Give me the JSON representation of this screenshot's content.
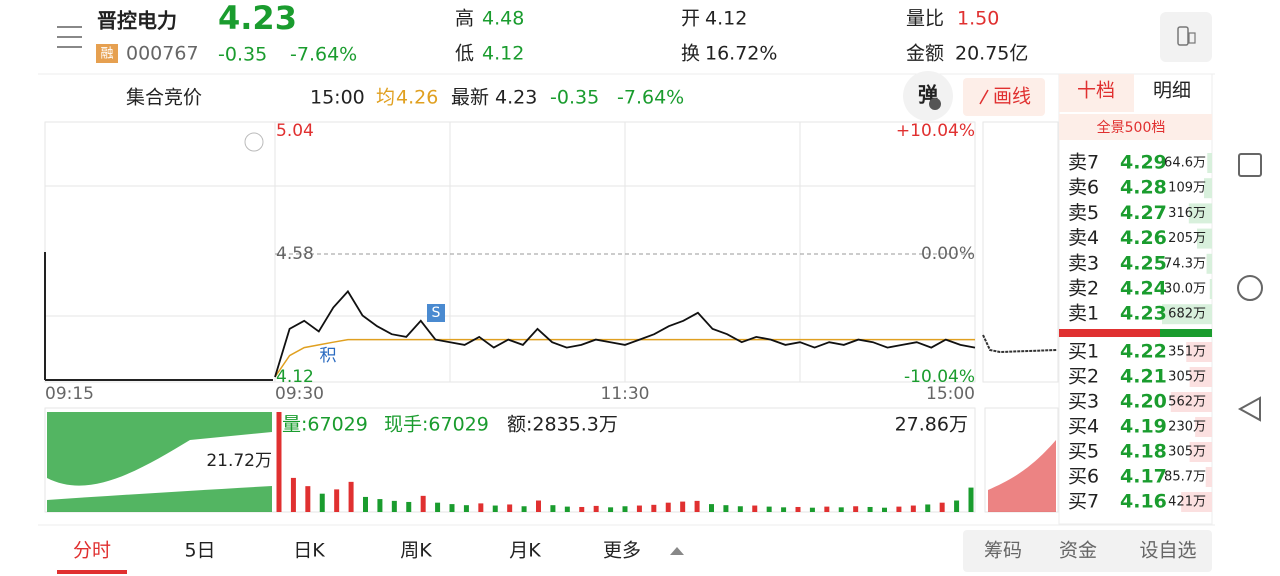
{
  "header": {
    "name": "晋控电力",
    "badge": "融",
    "code": "000767",
    "price": "4.23",
    "change": "-0.35",
    "pct": "-7.64%",
    "high_label": "高",
    "high": "4.48",
    "low_label": "低",
    "low": "4.12",
    "open_label": "开",
    "open": "4.12",
    "turnover_label": "换",
    "turnover": "16.72%",
    "ratio_label": "量比",
    "ratio": "1.50",
    "amount_label": "金额",
    "amount": "20.75亿"
  },
  "info_bar": {
    "auction": "集合竞价",
    "time": "15:00",
    "avg_label": "均",
    "avg": "4.26",
    "latest_label": "最新",
    "latest": "4.23",
    "change": "-0.35",
    "pct": "-7.64%",
    "popup": "弹",
    "draw": "画线"
  },
  "chart": {
    "type": "line",
    "ylim": [
      4.12,
      5.04
    ],
    "yticks": [
      5.04,
      4.58,
      4.12
    ],
    "y2ticks": [
      {
        "value": 5.04,
        "label": "+10.04%"
      },
      {
        "value": 4.58,
        "label": "0.00%"
      },
      {
        "value": 4.12,
        "label": "-10.04%"
      }
    ],
    "x_labels": [
      "09:15",
      "09:30",
      "11:30",
      "15:00"
    ],
    "price": {
      "color": "#111111",
      "values": [
        4.12,
        4.3,
        4.33,
        4.29,
        4.38,
        4.44,
        4.35,
        4.31,
        4.28,
        4.27,
        4.33,
        4.26,
        4.25,
        4.24,
        4.27,
        4.23,
        4.26,
        4.24,
        4.3,
        4.25,
        4.23,
        4.24,
        4.26,
        4.25,
        4.24,
        4.26,
        4.28,
        4.31,
        4.33,
        4.36,
        4.3,
        4.28,
        4.25,
        4.27,
        4.26,
        4.24,
        4.25,
        4.23,
        4.25,
        4.24,
        4.26,
        4.25,
        4.23,
        4.24,
        4.25,
        4.23,
        4.26,
        4.24,
        4.23
      ]
    },
    "average": {
      "color": "#e0a020",
      "values": [
        4.12,
        4.2,
        4.23,
        4.24,
        4.25,
        4.26,
        4.26,
        4.26,
        4.26,
        4.26,
        4.26,
        4.26,
        4.26,
        4.26,
        4.26,
        4.26,
        4.26,
        4.26,
        4.26,
        4.26,
        4.26,
        4.26,
        4.26,
        4.26,
        4.26,
        4.26,
        4.26,
        4.26,
        4.26,
        4.26,
        4.26,
        4.26,
        4.26,
        4.26,
        4.26,
        4.26,
        4.26,
        4.26,
        4.26,
        4.26,
        4.26,
        4.26,
        4.26,
        4.26,
        4.26,
        4.26,
        4.26,
        4.26,
        4.26
      ]
    },
    "annotations": [
      "S",
      "积"
    ]
  },
  "volume": {
    "type": "bar",
    "ylim": [
      0,
      27.86
    ],
    "yticks": [
      {
        "value": 27.86,
        "label": "27.86万"
      }
    ],
    "auction_label": "21.72万",
    "vol_text": "量:67029",
    "hand_text": "现手:67029",
    "amount_text": "额:2835.3万",
    "up_color": "#e03030",
    "down_color": "#1a9c2e",
    "values": [
      27.86,
      9.5,
      7.2,
      5.1,
      6.3,
      8.4,
      4.2,
      3.6,
      3.1,
      2.8,
      4.5,
      2.6,
      2.2,
      1.9,
      2.4,
      1.8,
      2.1,
      1.6,
      3.2,
      1.9,
      1.5,
      1.4,
      1.7,
      1.3,
      1.6,
      1.8,
      2.0,
      2.6,
      2.9,
      3.1,
      2.2,
      1.9,
      1.6,
      1.8,
      1.5,
      1.3,
      1.4,
      1.2,
      1.5,
      1.3,
      1.6,
      1.4,
      1.2,
      1.5,
      1.8,
      2.1,
      2.6,
      3.2,
      6.8
    ]
  },
  "order_book": {
    "tabs": [
      "十档",
      "明细"
    ],
    "panorama": "全景500档",
    "asks": [
      {
        "label": "卖7",
        "price": "4.29",
        "vol": 64.6,
        "vol_label": "64.6万"
      },
      {
        "label": "卖6",
        "price": "4.28",
        "vol": 109,
        "vol_label": "109万"
      },
      {
        "label": "卖5",
        "price": "4.27",
        "vol": 316,
        "vol_label": "316万"
      },
      {
        "label": "卖4",
        "price": "4.26",
        "vol": 205,
        "vol_label": "205万"
      },
      {
        "label": "卖3",
        "price": "4.25",
        "vol": 74.3,
        "vol_label": "74.3万"
      },
      {
        "label": "卖2",
        "price": "4.24",
        "vol": 30.0,
        "vol_label": "30.0万"
      },
      {
        "label": "卖1",
        "price": "4.23",
        "vol": 682,
        "vol_label": "682万"
      }
    ],
    "bids": [
      {
        "label": "买1",
        "price": "4.22",
        "vol": 351,
        "vol_label": "351万"
      },
      {
        "label": "买2",
        "price": "4.21",
        "vol": 305,
        "vol_label": "305万"
      },
      {
        "label": "买3",
        "price": "4.20",
        "vol": 562,
        "vol_label": "562万"
      },
      {
        "label": "买4",
        "price": "4.19",
        "vol": 230,
        "vol_label": "230万"
      },
      {
        "label": "买5",
        "price": "4.18",
        "vol": 305,
        "vol_label": "305万"
      },
      {
        "label": "买6",
        "price": "4.17",
        "vol": 85.7,
        "vol_label": "85.7万"
      },
      {
        "label": "买7",
        "price": "4.16",
        "vol": 421,
        "vol_label": "421万"
      }
    ]
  },
  "bottom_tabs": [
    "分时",
    "5日",
    "日K",
    "周K",
    "月K",
    "更多"
  ],
  "bottom_buttons": [
    "筹码",
    "资金",
    "设自选"
  ]
}
